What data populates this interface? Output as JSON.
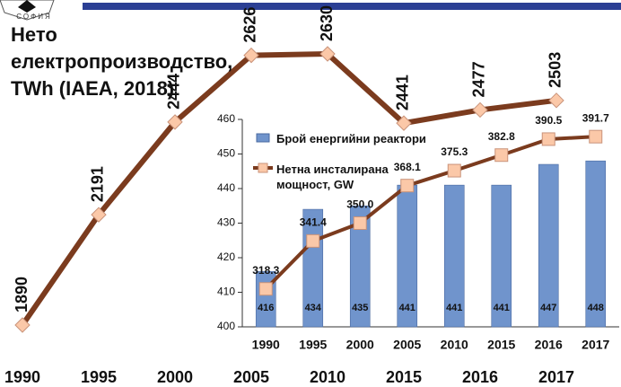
{
  "logo": {
    "text": "СОФИЯ"
  },
  "chart_data": [
    {
      "type": "line",
      "title": "Нето електропроизводство, TWh (IAEA, 2018)",
      "categories": [
        "1990",
        "1995",
        "2000",
        "2005",
        "2010",
        "2015",
        "2016",
        "2017"
      ],
      "series": [
        {
          "name": null,
          "color": "#7b3b1e",
          "marker_color": "#fbc8a8",
          "values": [
            1890,
            2191,
            2444,
            2626,
            2630,
            2441,
            2477,
            2503
          ]
        }
      ]
    },
    {
      "type": "bar_line",
      "categories": [
        "1990",
        "1995",
        "2000",
        "2005",
        "2010",
        "2015",
        "2016",
        "2017"
      ],
      "ylim": [
        400,
        460
      ],
      "yticks": [
        400,
        410,
        420,
        430,
        440,
        450,
        460
      ],
      "y2lim": [
        300,
        400
      ],
      "series": [
        {
          "name": "Брой енергийни реактори",
          "type": "bar",
          "color": "#7094cc",
          "values": [
            416,
            434,
            435,
            441,
            441,
            441,
            447,
            448
          ]
        },
        {
          "name": "Нетна инсталирана мощност, GW",
          "type": "line",
          "axis": "y2",
          "color": "#7b3b1e",
          "marker_color": "#fbc8a8",
          "values": [
            318.3,
            341.4,
            350.0,
            368.1,
            375.3,
            382.8,
            390.5,
            391.7
          ],
          "value_labels": [
            "318.3",
            "341.4",
            "350.0",
            "368.1",
            "375.3",
            "382.8",
            "390.5",
            "391.7"
          ]
        }
      ]
    }
  ]
}
